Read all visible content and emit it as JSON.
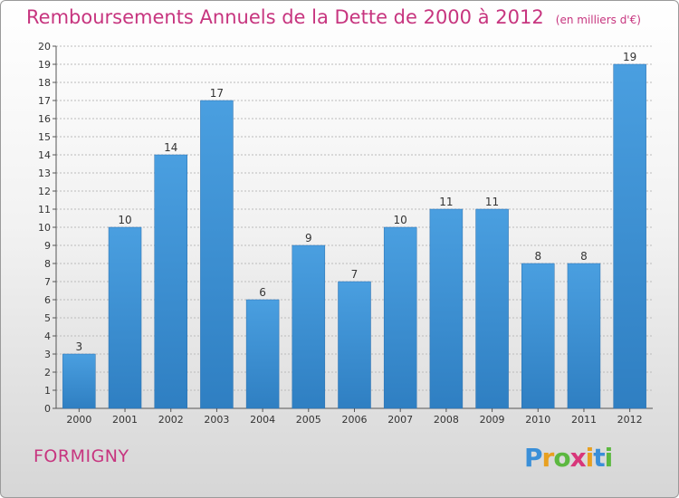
{
  "title": "Remboursements Annuels de la Dette de 2000 à 2012",
  "unit_note": "(en milliers d'€)",
  "commune": "FORMIGNY",
  "logo": {
    "letters": [
      "P",
      "r",
      "o",
      "x",
      "i",
      "t",
      "i"
    ],
    "colors": [
      "#3a8fd8",
      "#e8a020",
      "#5cb840",
      "#d8367a",
      "#e8a020",
      "#3a8fd8",
      "#5cb840"
    ]
  },
  "colors": {
    "bar": "#4a9fe0",
    "bar_dark": "#2f7fc2",
    "title": "#c7357f",
    "axis": "#555555",
    "grid": "#bbbbbb"
  },
  "chart_data": {
    "type": "bar",
    "categories": [
      "2000",
      "2001",
      "2002",
      "2003",
      "2004",
      "2005",
      "2006",
      "2007",
      "2008",
      "2009",
      "2010",
      "2011",
      "2012"
    ],
    "values": [
      3,
      10,
      14,
      17,
      6,
      9,
      7,
      10,
      11,
      11,
      8,
      8,
      19
    ],
    "data_labels": [
      "3",
      "10",
      "14",
      "17",
      "6",
      "9",
      "7",
      "10",
      "11",
      "11",
      "8",
      "8",
      "19"
    ],
    "yticks": [
      "0",
      "1",
      "2",
      "3",
      "4",
      "5",
      "6",
      "7",
      "8",
      "9",
      "10",
      "11",
      "12",
      "13",
      "14",
      "15",
      "16",
      "17",
      "18",
      "19",
      "20"
    ],
    "ylim": [
      0,
      20
    ],
    "grid": true
  }
}
